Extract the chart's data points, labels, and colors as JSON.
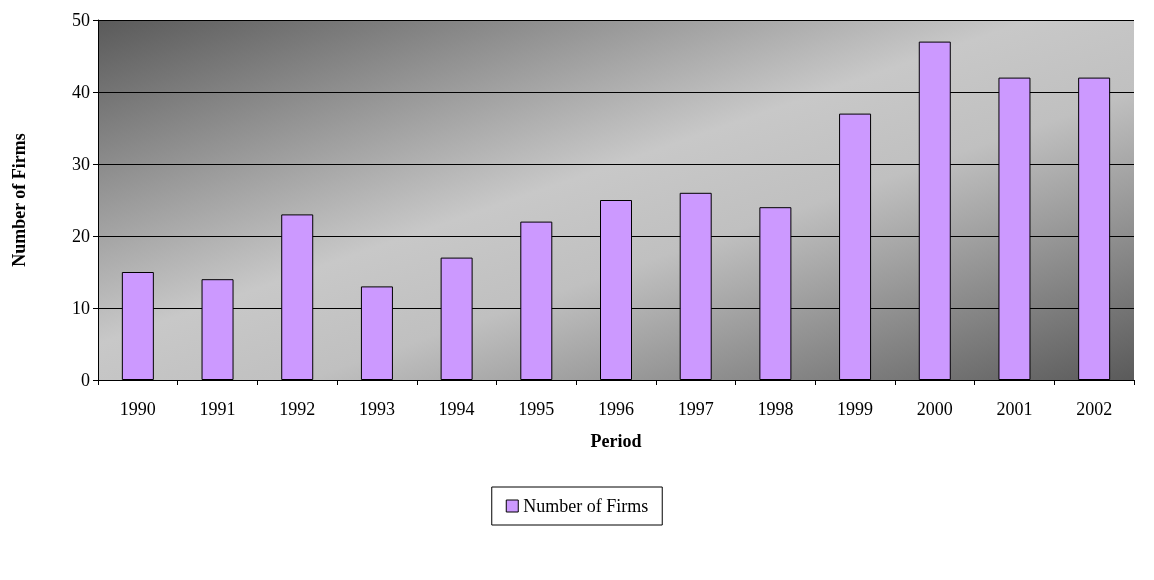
{
  "chart_data": {
    "type": "bar",
    "xlabel": "Period",
    "ylabel": "Number of Firms",
    "categories": [
      "1990",
      "1991",
      "1992",
      "1993",
      "1994",
      "1995",
      "1996",
      "1997",
      "1998",
      "1999",
      "2000",
      "2001",
      "2002"
    ],
    "series": [
      {
        "name": "Number of Firms",
        "color": "#cc99ff",
        "values": [
          15,
          14,
          23,
          13,
          17,
          22,
          25,
          26,
          24,
          37,
          47,
          42,
          42
        ]
      }
    ],
    "ylim": [
      0,
      50
    ],
    "yticks": [
      0,
      10,
      20,
      30,
      40,
      50
    ],
    "grid": "y",
    "legend": "bottom"
  }
}
